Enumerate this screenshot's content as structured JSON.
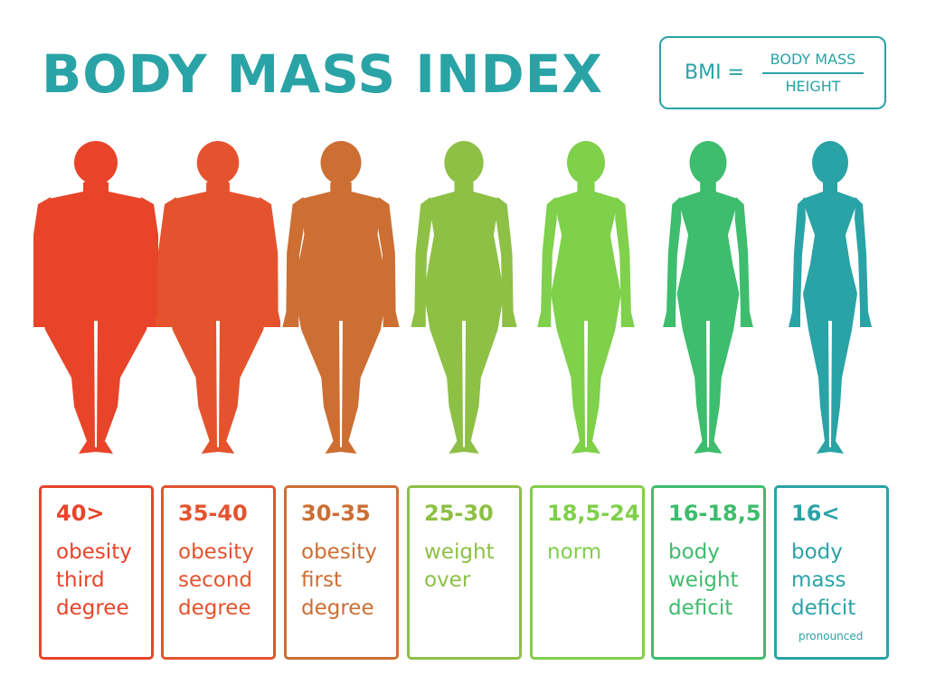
{
  "header": {
    "title": "BODY MASS INDEX",
    "formula": {
      "lhs": "BMI =",
      "numerator": "BODY MASS",
      "denominator": "HEIGHT"
    }
  },
  "accent_color": "#2aa3a6",
  "categories": [
    {
      "range": "40>",
      "desc": "obesity third degree",
      "note": "",
      "color": "#e8442a",
      "build": 1.0
    },
    {
      "range": "35-40",
      "desc": "obesity second degree",
      "note": "",
      "color": "#e4532e",
      "build": 0.82
    },
    {
      "range": "30-35",
      "desc": "obesity first degree",
      "note": "",
      "color": "#cd6e33",
      "build": 0.62
    },
    {
      "range": "25-30",
      "desc": "weight over",
      "note": "",
      "color": "#8dc045",
      "build": 0.42
    },
    {
      "range": "18,5-24",
      "desc": "norm",
      "note": "",
      "color": "#7fd04a",
      "build": 0.26
    },
    {
      "range": "16-18,5",
      "desc": "body weight deficit",
      "note": "",
      "color": "#3dbd6d",
      "build": 0.13
    },
    {
      "range": "16<",
      "desc": "body mass deficit",
      "note": "pronounced",
      "color": "#2aa3a6",
      "build": 0.0
    }
  ]
}
